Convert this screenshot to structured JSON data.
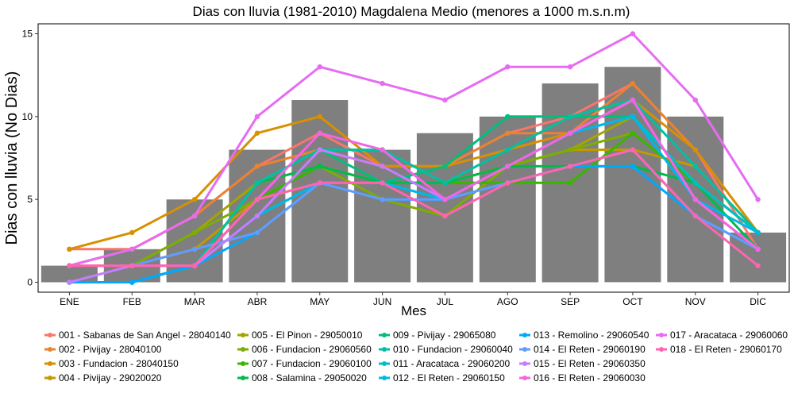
{
  "chart_data": {
    "type": "bar",
    "title": "Dias con lluvia (1981-2010) Magdalena Medio (menores a 1000 m.s.n.m)",
    "xlabel": "Mes",
    "ylabel": "Dias con lluvia (No Dias)",
    "categories": [
      "ENE",
      "FEB",
      "MAR",
      "ABR",
      "MAY",
      "JUN",
      "JUL",
      "AGO",
      "SEP",
      "OCT",
      "NOV",
      "DIC"
    ],
    "y_ticks": [
      "0",
      "5",
      "10",
      "15"
    ],
    "ylim": [
      -0.6,
      15.6
    ],
    "grid": false,
    "legend_position": "bottom",
    "bar_color": "#7f7f7f",
    "bars": [
      1,
      2,
      5,
      8,
      11,
      8,
      9,
      10,
      12,
      13,
      10,
      3
    ],
    "series": [
      {
        "name": "001 - Sabanas de San Angel - 28040140",
        "color": "#F8766D",
        "values": [
          2,
          2,
          4,
          7,
          9,
          7,
          7,
          9,
          10,
          12,
          8,
          2
        ]
      },
      {
        "name": "002 - Pivijay - 28040100",
        "color": "#EA8331",
        "values": [
          1,
          2,
          4,
          7,
          8,
          7,
          7,
          9,
          9,
          12,
          8,
          3
        ]
      },
      {
        "name": "003 - Fundacion - 28040150",
        "color": "#D89000",
        "values": [
          2,
          3,
          5,
          9,
          10,
          7,
          7,
          8,
          9,
          11,
          8,
          3
        ]
      },
      {
        "name": "004 - Pivijay - 29020020",
        "color": "#C09B00",
        "values": [
          1,
          1,
          2,
          5,
          6,
          6,
          6,
          7,
          8,
          8,
          7,
          3
        ]
      },
      {
        "name": "005 - El Pinon - 29050010",
        "color": "#A3A500",
        "values": [
          1,
          1,
          3,
          6,
          7,
          6,
          6,
          7,
          8,
          10,
          6,
          3
        ]
      },
      {
        "name": "006 - Fundacion - 29060560",
        "color": "#7CAE00",
        "values": [
          1,
          1,
          3,
          5,
          7,
          5,
          4,
          7,
          8,
          9,
          6,
          3
        ]
      },
      {
        "name": "007 - Fundacion - 29060100",
        "color": "#39B600",
        "values": [
          0,
          0,
          1,
          5,
          7,
          6,
          6,
          6,
          6,
          9,
          6,
          3
        ]
      },
      {
        "name": "008 - Salamina - 29050020",
        "color": "#00BB4E",
        "values": [
          0,
          0,
          1,
          6,
          7,
          6,
          6,
          7,
          7,
          7,
          6,
          2
        ]
      },
      {
        "name": "009 - Pivijay - 29065080",
        "color": "#00BF7D",
        "values": [
          0,
          0,
          1,
          6,
          8,
          6,
          7,
          10,
          10,
          10,
          6,
          3
        ]
      },
      {
        "name": "010 - Fundacion - 29060040",
        "color": "#00C1A3",
        "values": [
          0,
          0,
          1,
          6,
          8,
          8,
          6,
          8,
          10,
          11,
          7,
          3
        ]
      },
      {
        "name": "011 - Aracataca - 29060200",
        "color": "#00BFC4",
        "values": [
          0,
          0,
          1,
          4,
          6,
          6,
          5,
          7,
          9,
          10,
          6,
          3
        ]
      },
      {
        "name": "012 - El Reten - 29060150",
        "color": "#00B8E7",
        "values": [
          0,
          0,
          1,
          4,
          6,
          6,
          5,
          7,
          9,
          10,
          5,
          3
        ]
      },
      {
        "name": "013 - Remolino - 29060540",
        "color": "#00A9FF",
        "values": [
          0,
          0,
          1,
          3,
          6,
          5,
          5,
          6,
          7,
          7,
          4,
          2
        ]
      },
      {
        "name": "014 - El Reten - 29060190",
        "color": "#619CFF",
        "values": [
          0,
          1,
          2,
          3,
          6,
          5,
          5,
          6,
          7,
          8,
          4,
          2
        ]
      },
      {
        "name": "015 - El Reten - 29060350",
        "color": "#C77CFF",
        "values": [
          0,
          1,
          1,
          4,
          8,
          7,
          5,
          7,
          9,
          11,
          5,
          2
        ]
      },
      {
        "name": "016 - El Reten - 29060030",
        "color": "#F564E3",
        "values": [
          1,
          1,
          1,
          5,
          9,
          8,
          5,
          7,
          9,
          11,
          5,
          2
        ]
      },
      {
        "name": "017 - Aracataca - 29060060",
        "color": "#E76BF3",
        "values": [
          1,
          2,
          4,
          10,
          13,
          12,
          11,
          13,
          13,
          15,
          11,
          5
        ]
      },
      {
        "name": "018 - El Reten - 29060170",
        "color": "#FF64B0",
        "values": [
          1,
          1,
          1,
          5,
          6,
          6,
          4,
          6,
          7,
          8,
          4,
          1
        ]
      }
    ]
  }
}
